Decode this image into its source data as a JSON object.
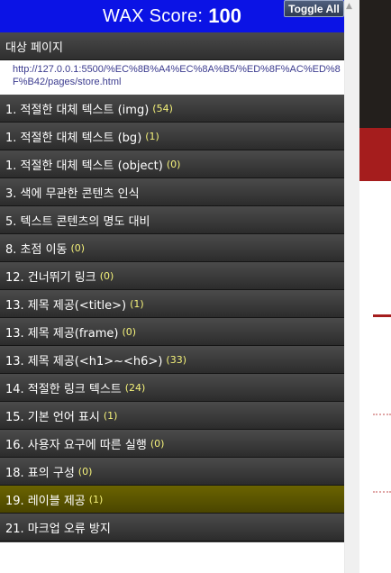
{
  "score": {
    "label": "WAX Score:",
    "value": "100"
  },
  "toggle_all_label": "Toggle All",
  "target": {
    "heading": "대상 페이지",
    "url": "http://127.0.0.1:5500/%EC%8B%A4%EC%8A%B5/%ED%8F%AC%ED%8F%B42/pages/store.html"
  },
  "items": [
    {
      "label": "1. 적절한 대체 텍스트 (img)",
      "count": "(54)"
    },
    {
      "label": "1. 적절한 대체 텍스트 (bg)",
      "count": "(1)"
    },
    {
      "label": "1. 적절한 대체 텍스트 (object)",
      "count": "(0)"
    },
    {
      "label": "3. 색에 무관한 콘텐츠 인식",
      "count": ""
    },
    {
      "label": "5. 텍스트 콘텐츠의 명도 대비",
      "count": ""
    },
    {
      "label": "8. 초점 이동",
      "count": "(0)"
    },
    {
      "label": "12. 건너뛰기 링크",
      "count": "(0)"
    },
    {
      "label": "13. 제목 제공(<title>)",
      "count": "(1)"
    },
    {
      "label": "13. 제목 제공(frame)",
      "count": "(0)"
    },
    {
      "label": "13. 제목 제공(<h1>~<h6>)",
      "count": "(33)"
    },
    {
      "label": "14. 적절한 링크 텍스트",
      "count": "(24)"
    },
    {
      "label": "15. 기본 언어 표시",
      "count": "(1)"
    },
    {
      "label": "16. 사용자 요구에 따른 실행",
      "count": "(0)"
    },
    {
      "label": "18. 표의 구성",
      "count": "(0)"
    },
    {
      "label": "19. 레이블 제공",
      "count": "(1)"
    },
    {
      "label": "21. 마크업 오류 방지",
      "count": ""
    }
  ],
  "active_item_index": 14,
  "colors": {
    "score_bar": "#0b13e5",
    "active_item": "#6b6400",
    "count_text": "#f5f27a",
    "page_accent_red": "#a51d1d"
  },
  "icons": {
    "scroll_up": "triangle-up"
  }
}
